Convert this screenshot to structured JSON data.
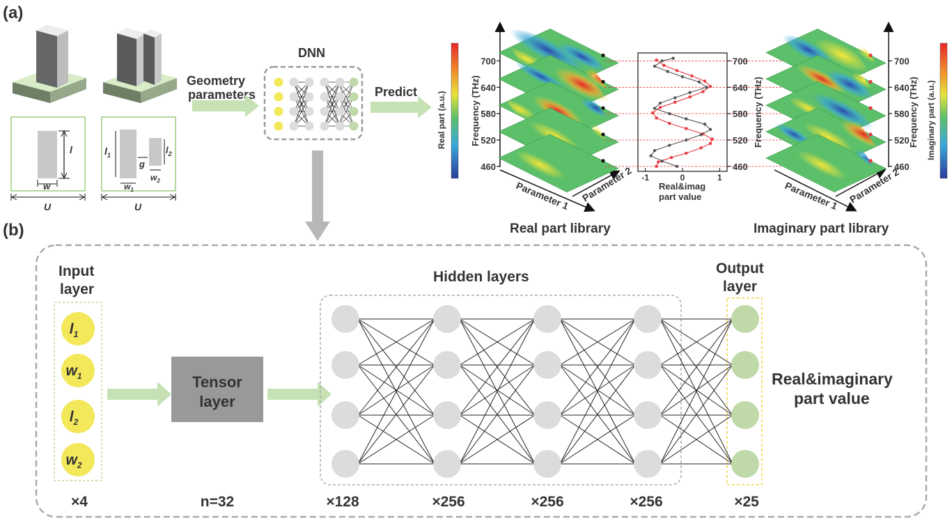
{
  "panel_a": {
    "label": "(a)",
    "unit_cell_1": {
      "dims": {
        "l": "l",
        "w": "w",
        "U": "U"
      }
    },
    "unit_cell_2": {
      "dims": {
        "l1": "l",
        "l1_sub": "1",
        "w1": "w",
        "w1_sub": "1",
        "g": "g",
        "l2": "l",
        "l2_sub": "2",
        "w2": "w",
        "w2_sub": "2",
        "U": "U"
      }
    },
    "geometry_label_1": "Geometry",
    "geometry_label_2": "parameters",
    "dnn_label": "DNN",
    "predict_label": "Predict",
    "real_colorbar_label": "Real part (a.u.)",
    "imag_colorbar_label": "Imaginary part (a.u.)",
    "frequency_axis_label": "Frequency (THz)",
    "frequency_ticks": [
      "700",
      "640",
      "580",
      "520",
      "460"
    ],
    "param1_label": "Parameter 1",
    "param2_label": "Parameter 2",
    "real_library_label": "Real part library",
    "imag_library_label": "Imaginary part library",
    "colors": {
      "arrow_green": "#c6e2b4",
      "arrow_gray": "#b7b7b7",
      "real_series": "#e8383d",
      "imag_series": "#555555",
      "dashed_guide": "#e8383d"
    }
  },
  "center_plot": {
    "xlabel_1": "Real&imag",
    "xlabel_2": "part value",
    "x_ticks": [
      "-1",
      "0",
      "1"
    ],
    "xlim": [
      -1.2,
      1.2
    ]
  },
  "chart_data": {
    "type": "line",
    "x_axis": "Real&imag part value",
    "y_axis": "Frequency (THz)",
    "ylim": [
      455,
      715
    ],
    "xlim": [
      -1.2,
      1.2
    ],
    "series": [
      {
        "color": "#e8383d",
        "points": [
          [
            -0.7,
            460
          ],
          [
            -0.65,
            470
          ],
          [
            -0.3,
            480
          ],
          [
            0.1,
            490
          ],
          [
            0.5,
            502
          ],
          [
            0.75,
            512
          ],
          [
            0.8,
            522
          ],
          [
            0.55,
            534
          ],
          [
            0.1,
            546
          ],
          [
            -0.35,
            558
          ],
          [
            -0.7,
            570
          ],
          [
            -0.8,
            582
          ],
          [
            -0.6,
            594
          ],
          [
            -0.2,
            606
          ],
          [
            0.2,
            618
          ],
          [
            0.55,
            630
          ],
          [
            0.75,
            642
          ],
          [
            0.6,
            654
          ],
          [
            0.25,
            666
          ],
          [
            -0.15,
            678
          ],
          [
            -0.5,
            690
          ],
          [
            -0.7,
            702
          ]
        ]
      },
      {
        "color": "#555555",
        "points": [
          [
            -0.15,
            460
          ],
          [
            -0.55,
            472
          ],
          [
            -0.85,
            484
          ],
          [
            -0.75,
            496
          ],
          [
            -0.35,
            508
          ],
          [
            0.1,
            520
          ],
          [
            0.5,
            532
          ],
          [
            0.75,
            544
          ],
          [
            0.6,
            556
          ],
          [
            0.1,
            568
          ],
          [
            -0.35,
            580
          ],
          [
            -0.75,
            592
          ],
          [
            -0.6,
            604
          ],
          [
            -0.2,
            616
          ],
          [
            0.2,
            628
          ],
          [
            0.65,
            640
          ],
          [
            0.45,
            652
          ],
          [
            0.0,
            664
          ],
          [
            -0.4,
            676
          ],
          [
            -0.75,
            688
          ],
          [
            -0.55,
            700
          ],
          [
            -0.25,
            706
          ]
        ]
      }
    ]
  },
  "panel_b": {
    "label": "(b)",
    "input_title_1": "Input",
    "input_title_2": "layer",
    "inputs": [
      {
        "main": "l",
        "sub": "1"
      },
      {
        "main": "w",
        "sub": "1"
      },
      {
        "main": "l",
        "sub": "2"
      },
      {
        "main": "w",
        "sub": "2"
      }
    ],
    "tensor_label_1": "Tensor",
    "tensor_label_2": "layer",
    "hidden_title": "Hidden layers",
    "output_title_1": "Output",
    "output_title_2": "layer",
    "result_label_1": "Real&imaginary",
    "result_label_2": "part value",
    "counts": [
      "×4",
      "n=32",
      "×128",
      "×256",
      "×256",
      "×256",
      "×25"
    ],
    "colors": {
      "input_node": "#f2e85a",
      "hidden_node": "#dcdcdc",
      "output_node": "#bfd9a8",
      "tensor_box": "#999999"
    }
  }
}
